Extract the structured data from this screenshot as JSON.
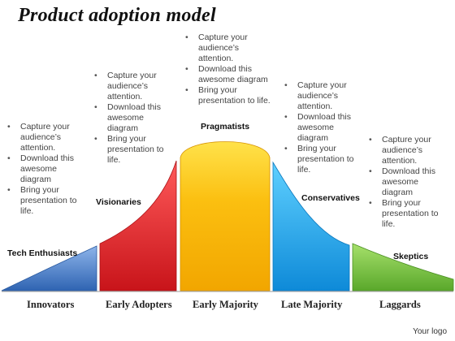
{
  "title": "Product adoption model",
  "bullet_groups": [
    [
      "Capture your audience’s attention.",
      "Download this awesome diagram",
      "Bring your presentation to life."
    ],
    [
      "Capture your audience’s attention.",
      "Download this awesome diagram",
      "Bring your presentation to life."
    ],
    [
      "Capture your audience’s attention.",
      "Download this awesome diagram",
      "Bring your presentation to life."
    ],
    [
      "Capture your audience’s attention.",
      "Download this awesome diagram",
      "Bring your presentation to life."
    ],
    [
      "Capture your audience’s attention.",
      "Download this awesome diagram",
      "Bring your presentation to life."
    ]
  ],
  "segments": [
    {
      "group": "Tech Enthusiasts",
      "stage": "Innovators",
      "color": "#4a7fc8"
    },
    {
      "group": "Visionaries",
      "stage": "Early Adopters",
      "color": "#e0262b"
    },
    {
      "group": "Pragmatists",
      "stage": "Early Majority",
      "color": "#f7b500"
    },
    {
      "group": "Conservatives",
      "stage": "Late Majority",
      "color": "#1fa8ee"
    },
    {
      "group": "Skeptics",
      "stage": "Laggards",
      "color": "#76c043"
    }
  ],
  "logo": "Your logo"
}
